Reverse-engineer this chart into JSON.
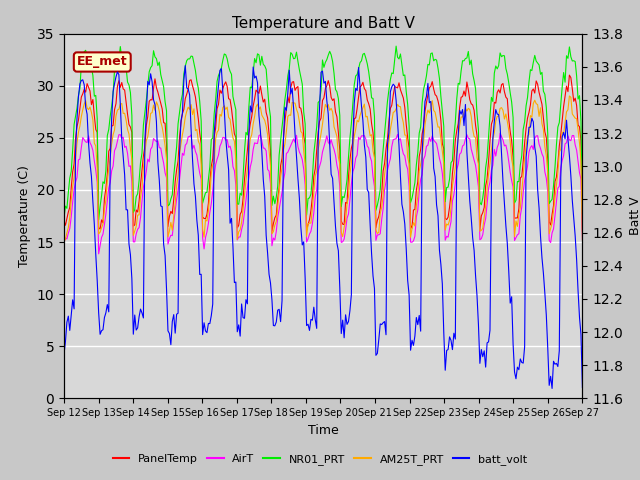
{
  "title": "Temperature and Batt V",
  "xlabel": "Time",
  "ylabel_left": "Temperature (C)",
  "ylabel_right": "Batt V",
  "annotation": "EE_met",
  "ylim_left": [
    0,
    35
  ],
  "ylim_right": [
    11.6,
    13.8
  ],
  "yticks_left": [
    0,
    5,
    10,
    15,
    20,
    25,
    30,
    35
  ],
  "yticks_right": [
    11.6,
    11.8,
    12.0,
    12.2,
    12.4,
    12.6,
    12.8,
    13.0,
    13.2,
    13.4,
    13.6,
    13.8
  ],
  "date_start": 12,
  "date_end": 27,
  "colors": {
    "PanelTemp": "#ff0000",
    "AirT": "#ff00ff",
    "NR01_PRT": "#00ee00",
    "AM25T_PRT": "#ffaa00",
    "batt_volt": "#0000ff"
  },
  "legend_labels": [
    "PanelTemp",
    "AirT",
    "NR01_PRT",
    "AM25T_PRT",
    "batt_volt"
  ],
  "plot_bg": "#d8d8d8",
  "fig_bg": "#c8c8c8",
  "grid_color": "#ffffff",
  "annotation_bg": "#ffffcc",
  "annotation_border": "#aa0000",
  "annotation_text_color": "#aa0000",
  "n_days": 15,
  "hours_per_day": 24,
  "temp_min_night": 6.0,
  "temp_max_day": 29.0,
  "batt_night_min": 11.95,
  "batt_day_max": 13.55
}
